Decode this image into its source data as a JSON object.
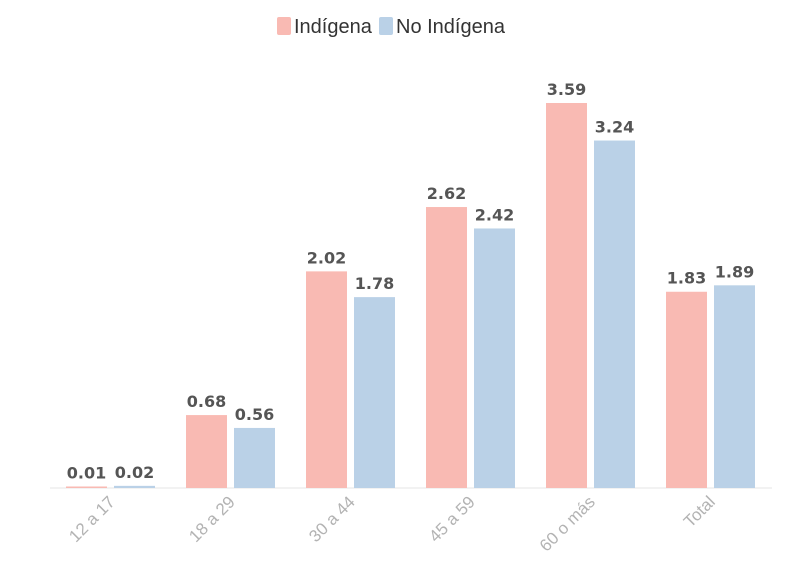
{
  "chart_data": {
    "type": "bar",
    "title": "",
    "xlabel": "",
    "ylabel": "",
    "categories": [
      "12 a 17",
      "18 a 29",
      "30 a 44",
      "45 a 59",
      "60 o más",
      "Total"
    ],
    "series": [
      {
        "name": "Indígena",
        "color": "#f9bab3",
        "values": [
          0.01,
          0.68,
          2.02,
          2.62,
          3.59,
          1.83
        ]
      },
      {
        "name": "No Indígena",
        "color": "#bad1e7",
        "values": [
          0.02,
          0.56,
          1.78,
          2.42,
          3.24,
          1.89
        ]
      }
    ],
    "ylim": [
      0,
      3.59
    ],
    "grid": false,
    "legend": "top-center",
    "value_format_decimals": 2
  }
}
